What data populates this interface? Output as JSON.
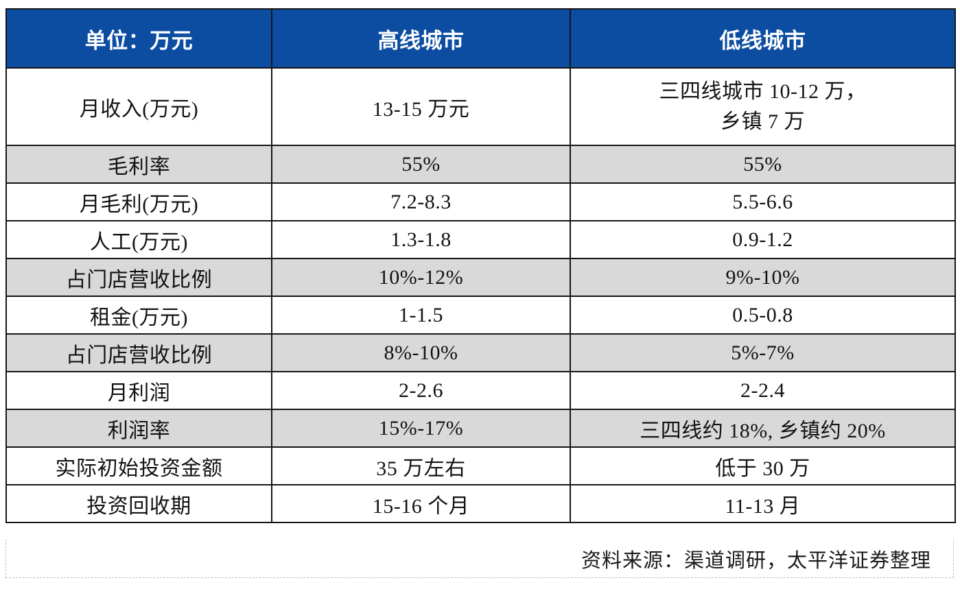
{
  "chart_data": {
    "type": "table",
    "columns": [
      "单位：万元",
      "高线城市",
      "低线城市"
    ],
    "rows": [
      [
        "月收入(万元)",
        "13-15 万元",
        "三四线城市 10-12 万，\n乡镇 7 万"
      ],
      [
        "毛利率",
        "55%",
        "55%"
      ],
      [
        "月毛利(万元)",
        "7.2-8.3",
        "5.5-6.6"
      ],
      [
        "人工(万元)",
        "1.3-1.8",
        "0.9-1.2"
      ],
      [
        "占门店营收比例",
        "10%-12%",
        "9%-10%"
      ],
      [
        "租金(万元)",
        "1-1.5",
        "0.5-0.8"
      ],
      [
        "占门店营收比例",
        "8%-10%",
        "5%-7%"
      ],
      [
        "月利润",
        "2-2.6",
        "2-2.4"
      ],
      [
        "利润率",
        "15%-17%",
        "三四线约 18%, 乡镇约 20%"
      ],
      [
        "实际初始投资金额",
        "35 万左右",
        "低于 30 万"
      ],
      [
        "投资回收期",
        "15-16 个月",
        "11-13 月"
      ]
    ],
    "source_note": "资料来源：渠道调研，太平洋证券整理"
  },
  "colors": {
    "header_background": "#0c4da2",
    "header_text": "#ffffff",
    "shaded_row_background": "#d9d9d9",
    "muted_label_text": "#6d727b",
    "body_text": "#121212",
    "grid_border": "#151515",
    "dashed_border": "#bdbdbd"
  }
}
